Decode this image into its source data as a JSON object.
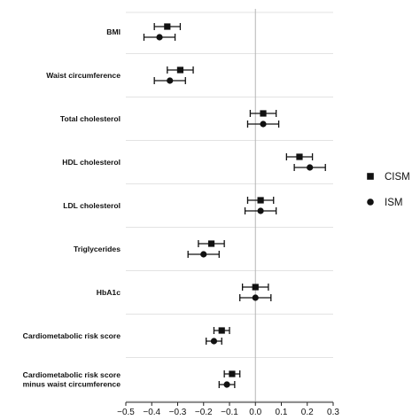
{
  "chart_data": {
    "type": "forest",
    "title": "",
    "xlabel": "",
    "ylabel": "",
    "xlim": [
      -0.5,
      0.3
    ],
    "x_ticks": [
      -0.5,
      -0.4,
      -0.3,
      -0.2,
      -0.1,
      0.0,
      0.1,
      0.2,
      0.3
    ],
    "x_tick_labels": [
      "−0.5",
      "−0.4",
      "−0.3",
      "−0.2",
      "−0.1",
      "0.0",
      "0.1",
      "0.2",
      "0.3"
    ],
    "legend_position": "right",
    "categories": [
      "BMI",
      "Waist circumference",
      "Total cholesterol",
      "HDL cholesterol",
      "LDL cholesterol",
      "Triglycerides",
      "HbA1c",
      "Cardiometabolic risk score",
      "Cardiometabolic risk score minus waist circumference"
    ],
    "category_lines": [
      [
        "BMI"
      ],
      [
        "Waist circumference"
      ],
      [
        "Total cholesterol"
      ],
      [
        "HDL cholesterol"
      ],
      [
        "LDL cholesterol"
      ],
      [
        "Triglycerides"
      ],
      [
        "HbA1c"
      ],
      [
        "Cardiometabolic risk score"
      ],
      [
        "Cardiometabolic risk score",
        "minus waist circumference"
      ]
    ],
    "series": [
      {
        "name": "CISM",
        "marker": "square",
        "estimate": [
          -0.34,
          -0.29,
          0.03,
          0.17,
          0.02,
          -0.17,
          0.0,
          -0.13,
          -0.09
        ],
        "lower": [
          -0.39,
          -0.34,
          -0.02,
          0.12,
          -0.03,
          -0.22,
          -0.05,
          -0.16,
          -0.12
        ],
        "upper": [
          -0.29,
          -0.24,
          0.08,
          0.22,
          0.07,
          -0.12,
          0.05,
          -0.1,
          -0.06
        ]
      },
      {
        "name": "ISM",
        "marker": "circle",
        "estimate": [
          -0.37,
          -0.33,
          0.03,
          0.21,
          0.02,
          -0.2,
          0.0,
          -0.16,
          -0.11
        ],
        "lower": [
          -0.43,
          -0.39,
          -0.03,
          0.15,
          -0.04,
          -0.26,
          -0.06,
          -0.19,
          -0.14
        ],
        "upper": [
          -0.31,
          -0.27,
          0.09,
          0.27,
          0.08,
          -0.14,
          0.06,
          -0.13,
          -0.08
        ]
      }
    ],
    "colors": {
      "marker": "#111111",
      "grid": "#e3e3e3",
      "zero_line": "#b5b5b5"
    }
  }
}
